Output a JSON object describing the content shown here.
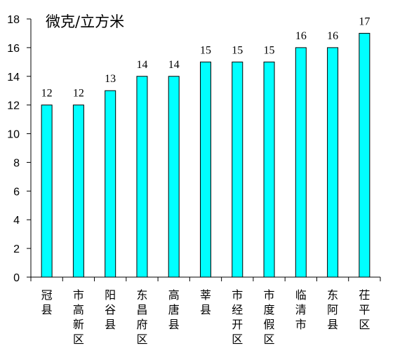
{
  "chart_data": {
    "type": "bar",
    "unit_label": "微克/立方米",
    "categories": [
      "冠县",
      "市高新区",
      "阳谷县",
      "东昌府区",
      "高唐县",
      "莘县",
      "市经开区",
      "市度假区",
      "临清市",
      "东阿县",
      "茌平区"
    ],
    "values": [
      12,
      12,
      13,
      14,
      14,
      15,
      15,
      15,
      16,
      16,
      17
    ],
    "ylim": [
      0,
      18
    ],
    "yticks": [
      0,
      2,
      4,
      6,
      8,
      10,
      12,
      14,
      16,
      18
    ],
    "grid": false,
    "legend": "none",
    "colors": {
      "bar_fill": "#00FFFF",
      "bar_stroke": "#000000",
      "axis": "#000000"
    }
  }
}
